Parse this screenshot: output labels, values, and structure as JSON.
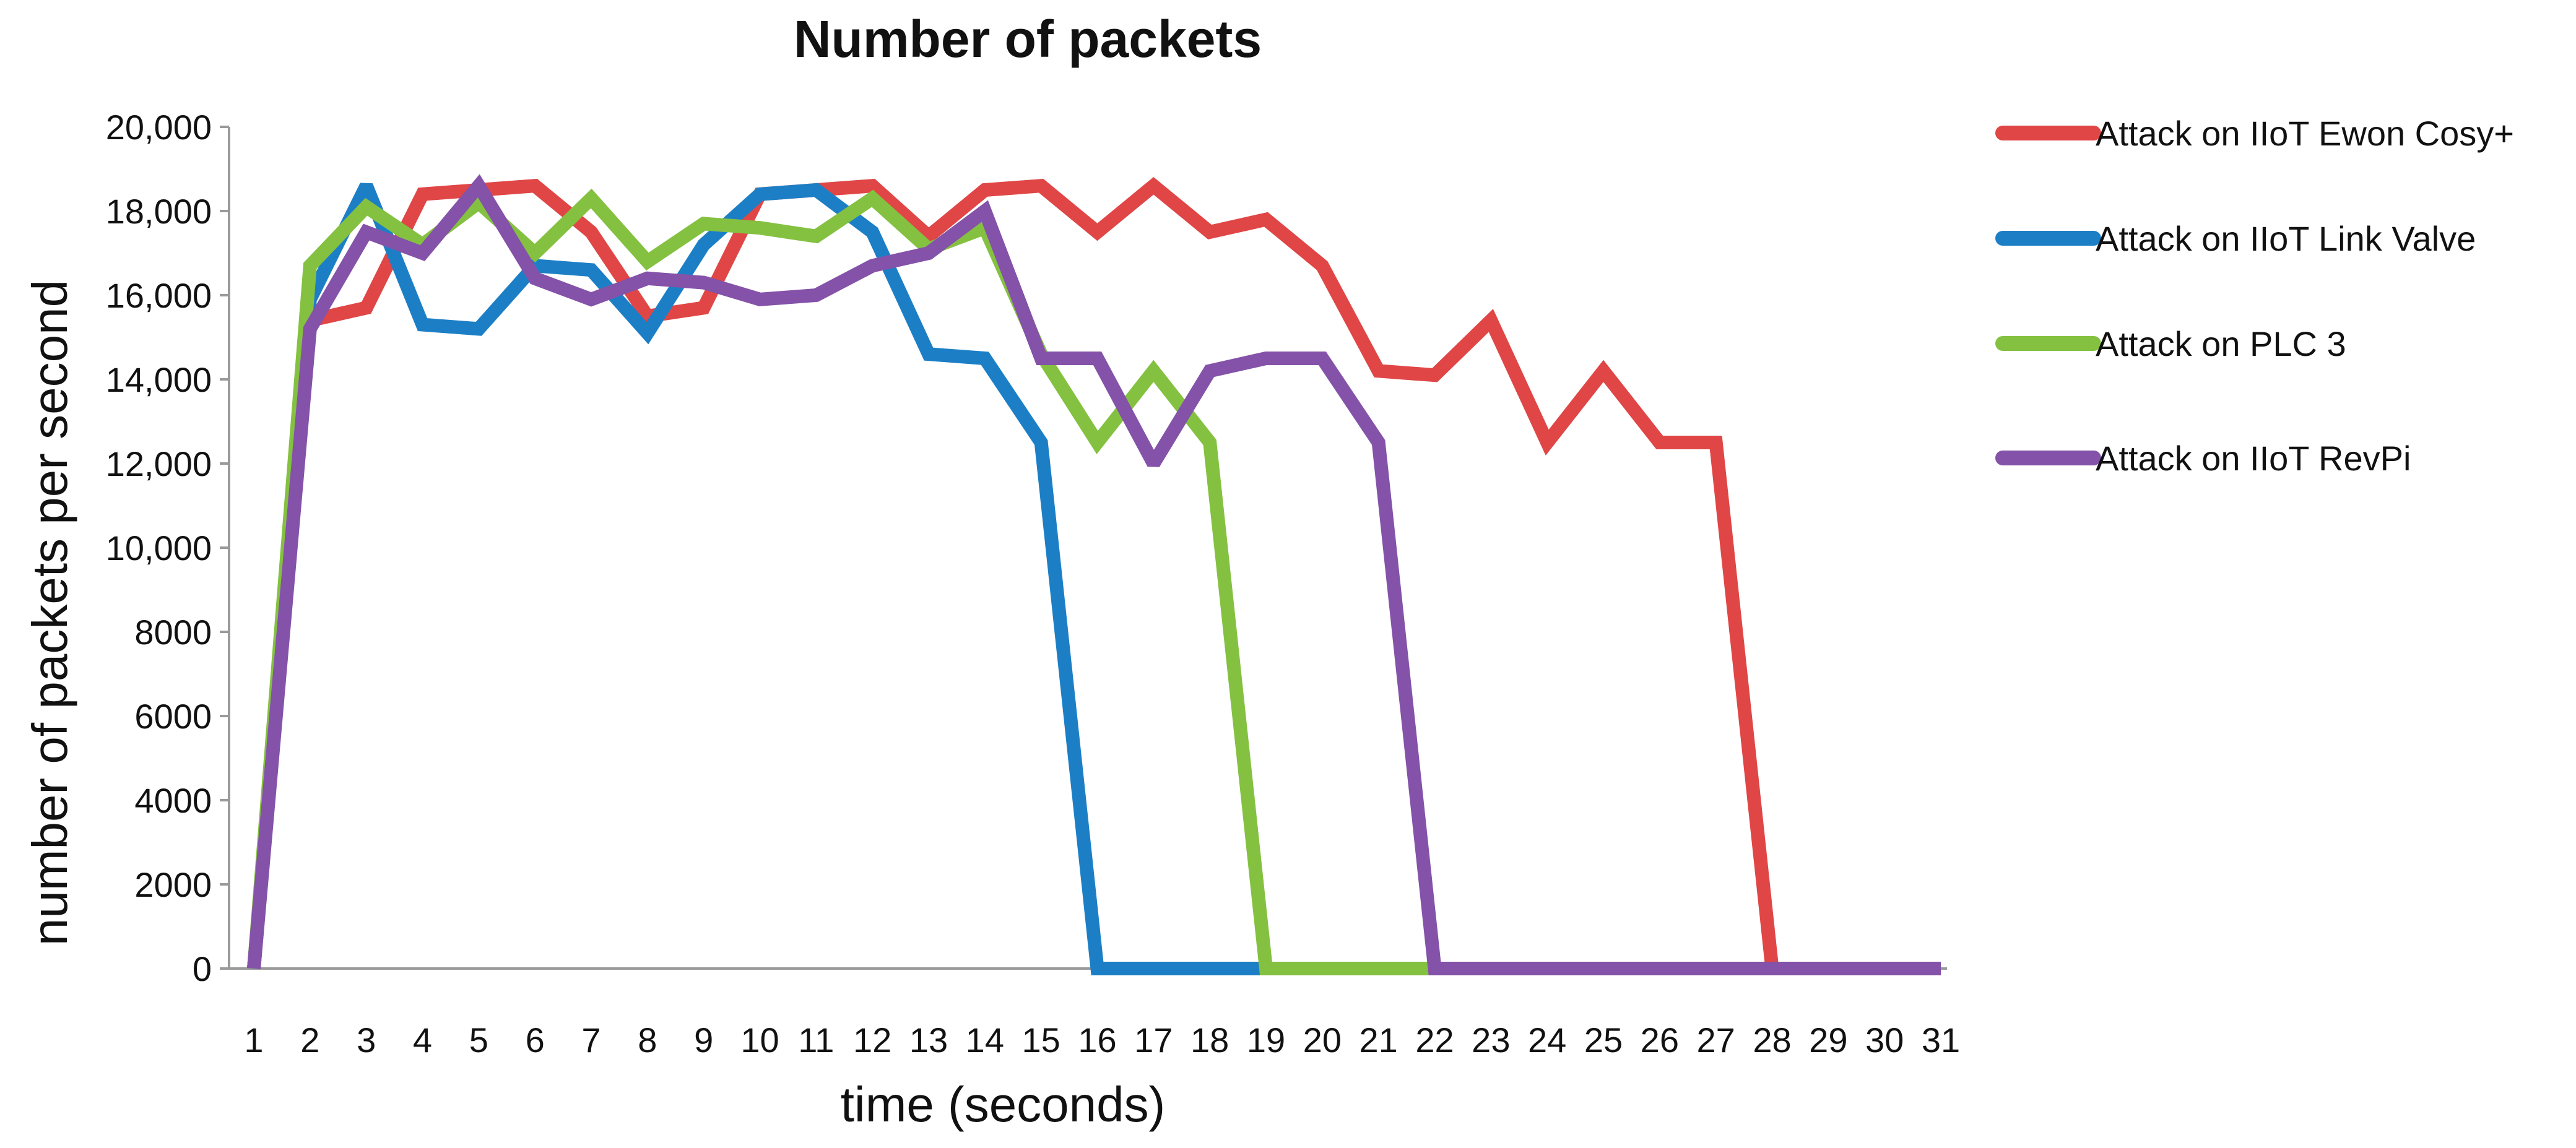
{
  "chart_data": {
    "type": "line",
    "title": "Number of packets",
    "xlabel": "time (seconds)",
    "ylabel": "number of packets  per second",
    "x": [
      1,
      2,
      3,
      4,
      5,
      6,
      7,
      8,
      9,
      10,
      11,
      12,
      13,
      14,
      15,
      16,
      17,
      18,
      19,
      20,
      21,
      22,
      23,
      24,
      25,
      26,
      27,
      28,
      29,
      30,
      31
    ],
    "ylim": [
      0,
      20000
    ],
    "yticks": [
      0,
      2000,
      4000,
      6000,
      8000,
      10000,
      12000,
      14000,
      16000,
      18000,
      20000
    ],
    "ytick_labels": [
      "0",
      "2000",
      "4000",
      "6000",
      "8000",
      "10,000",
      "12,000",
      "14,000",
      "16,000",
      "18,000",
      "20,000"
    ],
    "grid": false,
    "legend_position": "right",
    "series": [
      {
        "name": "Attack on IIoT Ewon Cosy+",
        "color": "#e04646",
        "values": [
          0,
          15400,
          15700,
          18400,
          18500,
          18600,
          17500,
          15500,
          15700,
          18400,
          18500,
          18600,
          17400,
          18500,
          18600,
          17500,
          18600,
          17500,
          17800,
          16700,
          14200,
          14100,
          15400,
          12500,
          14200,
          12500,
          12500,
          0,
          0,
          0,
          0
        ]
      },
      {
        "name": "Attack on IIoT Link Valve",
        "color": "#1c7fc6",
        "values": [
          0,
          15900,
          18600,
          15300,
          15200,
          16700,
          16600,
          15100,
          17200,
          18400,
          18500,
          17500,
          14600,
          14500,
          12500,
          0,
          0,
          0,
          0,
          0,
          0,
          0,
          0,
          0,
          0,
          0,
          0,
          0,
          0,
          0,
          0
        ]
      },
      {
        "name": "Attack on PLC 3",
        "color": "#84c141",
        "values": [
          0,
          16700,
          18100,
          17200,
          18200,
          17000,
          18300,
          16800,
          17700,
          17600,
          17400,
          18300,
          17100,
          17600,
          14600,
          12500,
          14200,
          12500,
          0,
          0,
          0,
          0,
          0,
          0,
          0,
          0,
          0,
          0,
          0,
          0,
          0
        ]
      },
      {
        "name": "Attack on IIoT RevPi",
        "color": "#8452a8",
        "values": [
          0,
          15200,
          17500,
          17000,
          18600,
          16400,
          15900,
          16400,
          16300,
          15900,
          16000,
          16700,
          17000,
          18000,
          14500,
          14500,
          12000,
          14200,
          14500,
          14500,
          12500,
          0,
          0,
          0,
          0,
          0,
          0,
          0,
          0,
          0,
          0
        ]
      }
    ]
  }
}
